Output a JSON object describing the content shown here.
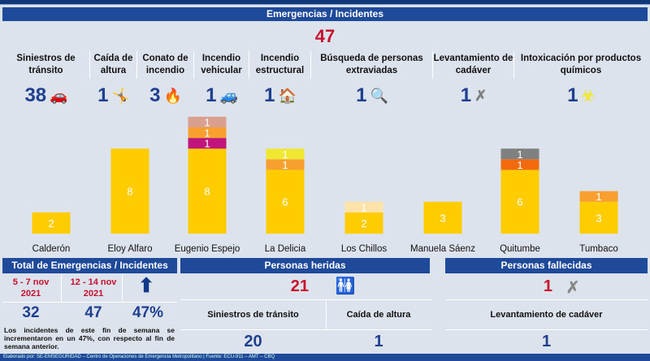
{
  "header": {
    "title": "Emergencias / Incidentes",
    "total": "47"
  },
  "categories": [
    {
      "label": "Siniestros de tránsito",
      "value": "38",
      "icon": "car-crash-icon",
      "glyph": "🚗",
      "color": "#ffcc00"
    },
    {
      "label": "Caída de altura",
      "value": "1",
      "icon": "fall-icon",
      "glyph": "🤸",
      "color": "#c0157a"
    },
    {
      "label": "Conato de incendio",
      "value": "3",
      "icon": "fire-icon",
      "glyph": "🔥",
      "color": "#f7a030"
    },
    {
      "label": "Incendio vehicular",
      "value": "1",
      "icon": "car-fire-icon",
      "glyph": "🚙",
      "color": "#d9a090"
    },
    {
      "label": "Incendio estructural",
      "value": "1",
      "icon": "house-fire-icon",
      "glyph": "🏠",
      "color": "#f26a10"
    },
    {
      "label": "Búsqueda de personas extraviadas",
      "value": "1",
      "icon": "search-person-icon",
      "glyph": "🔍",
      "color": "#fde3a8"
    },
    {
      "label": "Levantamiento de cadáver",
      "value": "1",
      "icon": "body-icon",
      "glyph": "✗",
      "color": "#808080"
    },
    {
      "label": "Intoxicación por productos químicos",
      "value": "1",
      "icon": "chemical-icon",
      "glyph": "☣",
      "color": "#f0e830"
    }
  ],
  "chart_data": {
    "type": "bar",
    "stacked": true,
    "categories": [
      "Calderón",
      "Eloy Alfaro",
      "Eugenio Espejo",
      "La Delicia",
      "Los Chillos",
      "Manuela Sáenz",
      "Quitumbe",
      "Tumbaco"
    ],
    "series": [
      {
        "name": "Siniestros de tránsito",
        "color": "#ffcc00",
        "values": [
          2,
          8,
          8,
          6,
          2,
          3,
          6,
          3
        ]
      },
      {
        "name": "Caída de altura",
        "color": "#c0157a",
        "values": [
          0,
          0,
          1,
          0,
          0,
          0,
          0,
          0
        ]
      },
      {
        "name": "Conato de incendio",
        "color": "#f7a030",
        "values": [
          0,
          0,
          1,
          1,
          0,
          0,
          0,
          1
        ]
      },
      {
        "name": "Incendio vehicular",
        "color": "#d9a090",
        "values": [
          0,
          0,
          1,
          0,
          0,
          0,
          0,
          0
        ]
      },
      {
        "name": "Incendio estructural",
        "color": "#f26a10",
        "values": [
          0,
          0,
          0,
          0,
          0,
          0,
          1,
          0
        ]
      },
      {
        "name": "Búsqueda de personas extraviadas",
        "color": "#fde3a8",
        "values": [
          0,
          0,
          0,
          0,
          1,
          0,
          0,
          0
        ]
      },
      {
        "name": "Levantamiento de cadáver",
        "color": "#808080",
        "values": [
          0,
          0,
          0,
          0,
          0,
          0,
          1,
          0
        ]
      },
      {
        "name": "Intoxicación por productos químicos",
        "color": "#f0e830",
        "values": [
          0,
          0,
          0,
          1,
          0,
          0,
          0,
          0
        ]
      }
    ],
    "ylim": [
      0,
      12
    ]
  },
  "totals": {
    "title": "Total de Emergencias / Incidentes",
    "prev_period": "5 - 7 nov 2021",
    "curr_period": "12 - 14 nov 2021",
    "prev_value": "32",
    "curr_value": "47",
    "change": "47%",
    "trend_icon": "arrow-up-icon",
    "note": "Los incidentes de este fin de semana se incrementaron en un 47%, con respecto al fin de semana anterior."
  },
  "injured": {
    "title": "Personas heridas",
    "total": "21",
    "cols": [
      {
        "label": "Siniestros de tránsito",
        "value": "20"
      },
      {
        "label": "Caída de altura",
        "value": "1"
      }
    ]
  },
  "deceased": {
    "title": "Personas fallecidas",
    "total": "1",
    "cols": [
      {
        "label": "Levantamiento de cadáver",
        "value": "1"
      }
    ]
  },
  "footer": "Elaborado por: SE-EMSEGURIDAD – Centro de Operaciones de Emergencia Metropolitano | Fuente: ECU-911 – AMT – CBQ"
}
